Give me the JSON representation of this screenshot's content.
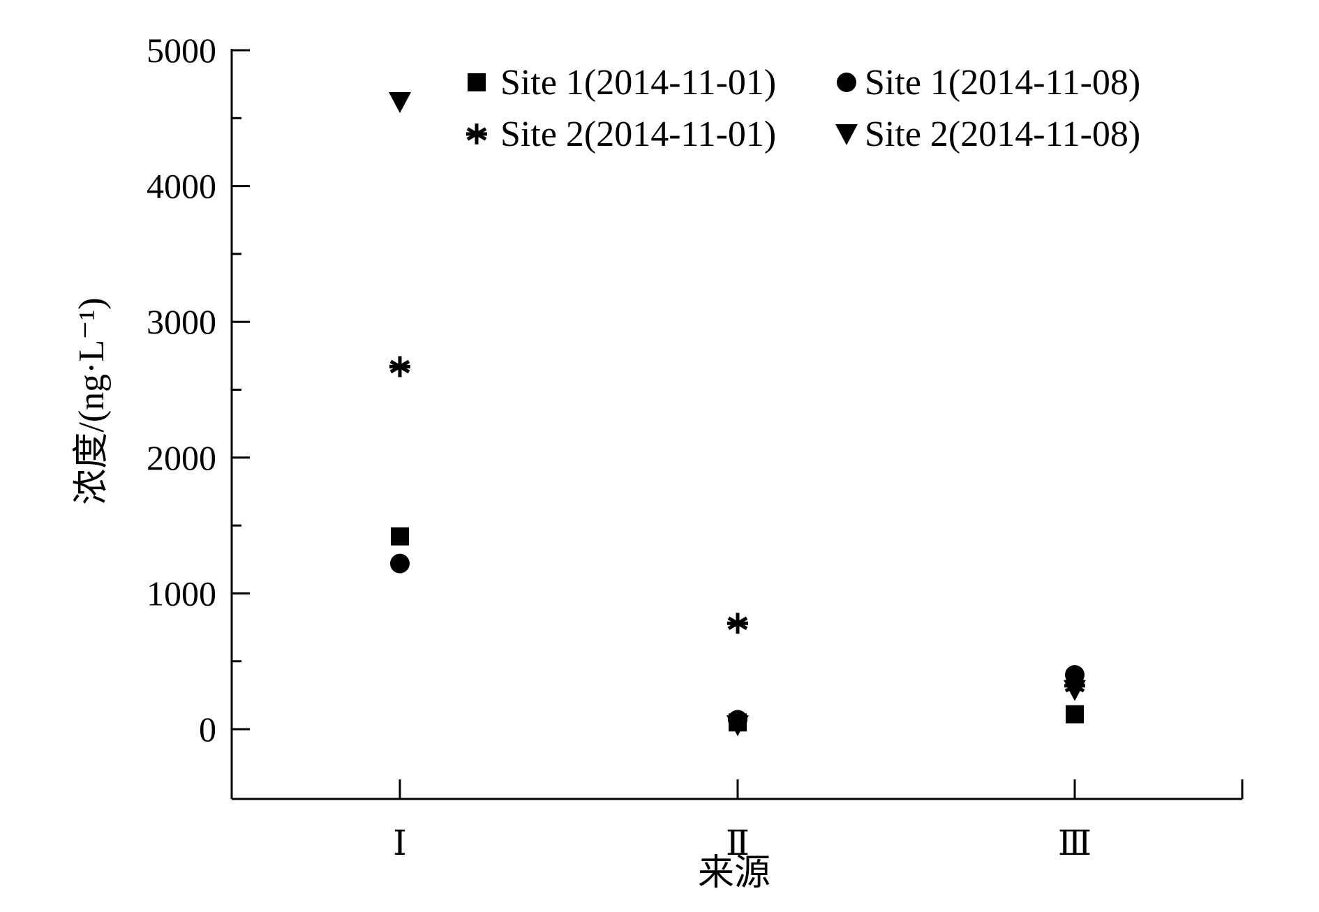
{
  "chart_data": {
    "type": "scatter",
    "categories": [
      "Ⅰ",
      "Ⅱ",
      "Ⅲ"
    ],
    "xlabel": "来源",
    "ylabel": "浓度/(ng·L⁻¹)",
    "ylim": [
      -500,
      5000
    ],
    "yticks": [
      0,
      1000,
      2000,
      3000,
      4000,
      5000
    ],
    "ytick_labels": [
      "0",
      "1000",
      "2000",
      "3000",
      "4000",
      "5000"
    ],
    "grid": false,
    "legend_position": "top-right",
    "series": [
      {
        "name": "Site 1(2014-11-01)",
        "marker": "square",
        "values": [
          1420,
          50,
          110
        ]
      },
      {
        "name": "Site 1(2014-11-08)",
        "marker": "circle",
        "values": [
          1220,
          70,
          400
        ]
      },
      {
        "name": "Site 2(2014-11-01)",
        "marker": "asterisk",
        "values": [
          2670,
          780,
          320
        ]
      },
      {
        "name": "Site 2(2014-11-08)",
        "marker": "triangle-down",
        "values": [
          4620,
          30,
          290
        ]
      }
    ],
    "colors": {
      "marker": "#000000",
      "axis": "#000000",
      "background": "#ffffff"
    }
  }
}
